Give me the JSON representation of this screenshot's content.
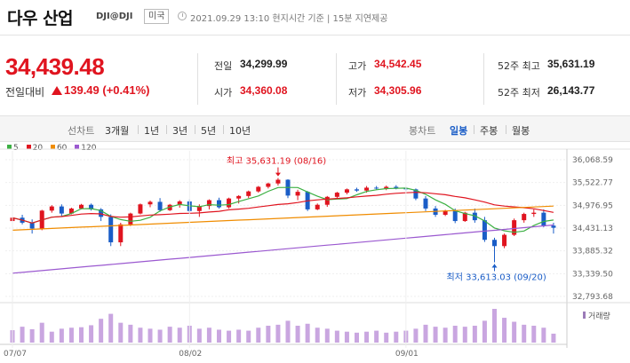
{
  "header": {
    "name": "다우 산업",
    "code": "DJI@DJI",
    "market": "미국",
    "time": "2021.09.29 13:10  현지시간 기준  |  15분 지연제공"
  },
  "quote": {
    "price": "34,439.48",
    "change_label": "전일대비",
    "change": "139.49 (+0.41%)",
    "prev_close_label": "전일",
    "prev_close": "34,299.99",
    "open_label": "시가",
    "open": "34,360.08",
    "high_label": "고가",
    "high": "34,542.45",
    "low_label": "저가",
    "low": "34,305.96",
    "w52_high_label": "52주 최고",
    "w52_high": "35,631.19",
    "w52_low_label": "52주 최저",
    "w52_low": "26,143.77"
  },
  "tabs": {
    "line_chart": "선차트",
    "periods": [
      "3개월",
      "1년",
      "3년",
      "5년",
      "10년"
    ],
    "candle_chart": "봉차트",
    "candle_periods": [
      "일봉",
      "주봉",
      "월봉"
    ],
    "active": "일봉"
  },
  "legend": [
    {
      "label": "5",
      "color": "#3cb043"
    },
    {
      "label": "20",
      "color": "#e0141f"
    },
    {
      "label": "60",
      "color": "#f08c00"
    },
    {
      "label": "120",
      "color": "#9b59d0"
    }
  ],
  "colors": {
    "up": "#e0141f",
    "down": "#1a5dc7",
    "volume": "#c9a6e0"
  },
  "chart_data": {
    "type": "candlestick",
    "y_ticks": [
      "36,068.59",
      "35,522.77",
      "34,976.95",
      "34,431.13",
      "33,885.32",
      "33,339.50",
      "32,793.68"
    ],
    "ylim": [
      32793.68,
      36068.59
    ],
    "x_ticks": [
      "07/07",
      "08/02",
      "09/01"
    ],
    "volume_label": "거래량",
    "annotations": {
      "high": "최고 35,631.19 (08/16)",
      "low": "최저 33,613.03 (09/20)"
    },
    "candles": [
      [
        34600,
        34700,
        34480,
        34680
      ],
      [
        34680,
        34750,
        34520,
        34560
      ],
      [
        34560,
        34640,
        34300,
        34420
      ],
      [
        34420,
        34870,
        34380,
        34850
      ],
      [
        34850,
        34980,
        34800,
        34950
      ],
      [
        34950,
        35000,
        34700,
        34780
      ],
      [
        34780,
        34920,
        34760,
        34900
      ],
      [
        34900,
        35010,
        34880,
        34990
      ],
      [
        34990,
        35020,
        34850,
        34880
      ],
      [
        34880,
        34910,
        34600,
        34700
      ],
      [
        34700,
        34760,
        34000,
        34090
      ],
      [
        34090,
        34560,
        34000,
        34520
      ],
      [
        34520,
        34800,
        34480,
        34780
      ],
      [
        34780,
        35020,
        34760,
        35000
      ],
      [
        35000,
        35090,
        34930,
        35060
      ],
      [
        35060,
        35150,
        34820,
        34860
      ],
      [
        34860,
        35010,
        34840,
        34990
      ],
      [
        34990,
        35100,
        34920,
        35070
      ],
      [
        35070,
        35120,
        34800,
        34840
      ],
      [
        34840,
        35000,
        34700,
        34960
      ],
      [
        34960,
        35120,
        34880,
        35100
      ],
      [
        35100,
        35160,
        34900,
        34930
      ],
      [
        34930,
        35160,
        34900,
        35140
      ],
      [
        35140,
        35220,
        35020,
        35200
      ],
      [
        35200,
        35330,
        35150,
        35310
      ],
      [
        35310,
        35440,
        35280,
        35420
      ],
      [
        35420,
        35520,
        35380,
        35500
      ],
      [
        35500,
        35631,
        35450,
        35590
      ],
      [
        35590,
        35600,
        35150,
        35210
      ],
      [
        35210,
        35350,
        35100,
        35300
      ],
      [
        35300,
        35320,
        34840,
        34880
      ],
      [
        34880,
        35020,
        34860,
        34990
      ],
      [
        34990,
        35200,
        34940,
        35180
      ],
      [
        35180,
        35300,
        35140,
        35280
      ],
      [
        35280,
        35380,
        35240,
        35360
      ],
      [
        35360,
        35400,
        35300,
        35330
      ],
      [
        35330,
        35440,
        35280,
        35400
      ],
      [
        35400,
        35440,
        35350,
        35380
      ],
      [
        35380,
        35450,
        35340,
        35420
      ],
      [
        35420,
        35460,
        35360,
        35390
      ],
      [
        35390,
        35420,
        35320,
        35360
      ],
      [
        35360,
        35380,
        35100,
        35140
      ],
      [
        35140,
        35200,
        34840,
        34900
      ],
      [
        34900,
        34960,
        34700,
        34750
      ],
      [
        34750,
        34870,
        34720,
        34850
      ],
      [
        34850,
        34900,
        34550,
        34600
      ],
      [
        34600,
        34820,
        34580,
        34800
      ],
      [
        34800,
        34900,
        34560,
        34620
      ],
      [
        34620,
        34700,
        34100,
        34150
      ],
      [
        34150,
        34200,
        33613,
        34000
      ],
      [
        34000,
        34300,
        33950,
        34270
      ],
      [
        34270,
        34660,
        34240,
        34620
      ],
      [
        34620,
        34800,
        34560,
        34770
      ],
      [
        34770,
        34880,
        34700,
        34800
      ],
      [
        34800,
        34880,
        34450,
        34490
      ],
      [
        34490,
        34560,
        34300,
        34439
      ]
    ],
    "volumes": [
      25,
      32,
      27,
      40,
      22,
      28,
      30,
      31,
      35,
      48,
      58,
      40,
      36,
      30,
      28,
      26,
      32,
      30,
      34,
      28,
      30,
      26,
      24,
      26,
      24,
      30,
      34,
      36,
      44,
      34,
      38,
      30,
      28,
      24,
      22,
      20,
      22,
      24,
      20,
      22,
      24,
      28,
      36,
      32,
      30,
      34,
      32,
      34,
      44,
      68,
      50,
      42,
      36,
      34,
      30,
      18
    ]
  }
}
